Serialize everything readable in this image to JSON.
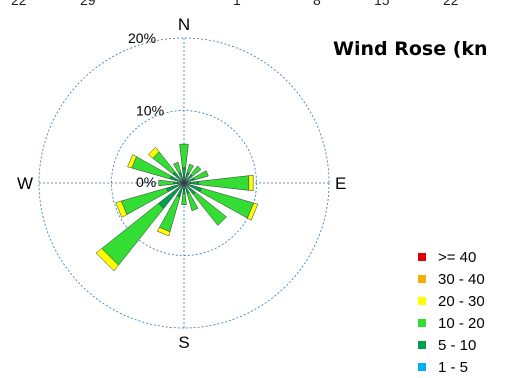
{
  "top_ticks": [
    "22",
    "29",
    "1",
    "8",
    "15",
    "22"
  ],
  "chart_data": {
    "type": "wind-rose",
    "title": "Wind Rose (kn",
    "radial_unit": "%",
    "radial_ticks": [
      {
        "value": 10,
        "label": "10%"
      },
      {
        "value": 20,
        "label": "20%"
      }
    ],
    "zero_label": "0%",
    "rmax": 20,
    "compass": {
      "N": "N",
      "E": "E",
      "S": "S",
      "W": "W"
    },
    "speed_bins": [
      {
        "label": "1 - 5",
        "color": "#00b0f0"
      },
      {
        "label": "5 - 10",
        "color": "#00a050"
      },
      {
        "label": "10 - 20",
        "color": "#33dd33"
      },
      {
        "label": "20 - 30",
        "color": "#ffff00"
      },
      {
        "label": "30 - 40",
        "color": "#f0b000"
      },
      {
        "label": ">= 40",
        "color": "#e00000"
      }
    ],
    "directions": [
      {
        "dir": 0,
        "values": [
          0.6,
          1.5,
          3.3,
          0.0,
          0,
          0
        ]
      },
      {
        "dir": 22.5,
        "values": [
          0.5,
          1.0,
          1.2,
          0.0,
          0,
          0
        ]
      },
      {
        "dir": 45,
        "values": [
          0.5,
          1.0,
          1.5,
          0.0,
          0,
          0
        ]
      },
      {
        "dir": 67.5,
        "values": [
          0.5,
          1.0,
          2.0,
          0.0,
          0,
          0
        ]
      },
      {
        "dir": 90,
        "values": [
          0.5,
          1.5,
          7.0,
          0.6,
          0,
          0
        ]
      },
      {
        "dir": 112.5,
        "values": [
          0.5,
          2.0,
          7.5,
          0.6,
          0,
          0
        ]
      },
      {
        "dir": 135,
        "values": [
          0.5,
          1.5,
          5.5,
          0.0,
          0,
          0
        ]
      },
      {
        "dir": 157.5,
        "values": [
          0.5,
          1.0,
          2.5,
          0.0,
          0,
          0
        ]
      },
      {
        "dir": 180,
        "values": [
          0.5,
          1.0,
          1.5,
          0.0,
          0,
          0
        ]
      },
      {
        "dir": 202.5,
        "values": [
          0.5,
          1.5,
          5.0,
          0.6,
          0,
          0
        ]
      },
      {
        "dir": 225,
        "values": [
          0.5,
          4.0,
          10.0,
          1.0,
          0,
          0
        ]
      },
      {
        "dir": 247.5,
        "values": [
          0.5,
          2.0,
          6.5,
          0.8,
          0,
          0
        ]
      },
      {
        "dir": 270,
        "values": [
          0.5,
          1.0,
          2.0,
          0.0,
          0,
          0
        ]
      },
      {
        "dir": 292.5,
        "values": [
          0.5,
          1.5,
          5.5,
          0.6,
          0,
          0
        ]
      },
      {
        "dir": 315,
        "values": [
          0.5,
          1.5,
          3.5,
          0.8,
          0,
          0
        ]
      },
      {
        "dir": 337.5,
        "values": [
          0.5,
          1.0,
          1.5,
          0.0,
          0,
          0
        ]
      }
    ]
  }
}
